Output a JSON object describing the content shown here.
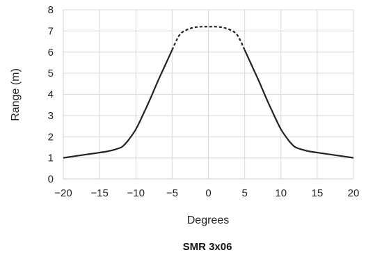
{
  "chart_data": {
    "type": "line",
    "title": "SMR 3x06",
    "xlabel": "Degrees",
    "ylabel": "Range (m)",
    "xlim": [
      -20,
      20
    ],
    "ylim": [
      0,
      8
    ],
    "x_ticks": [
      -20,
      -15,
      -10,
      -5,
      0,
      5,
      10,
      15,
      20
    ],
    "y_ticks": [
      0,
      1,
      2,
      3,
      4,
      5,
      6,
      7,
      8
    ],
    "x_tick_labels": [
      "−20",
      "−15",
      "−10",
      "−5",
      "0",
      "5",
      "10",
      "15",
      "20"
    ],
    "y_tick_labels": [
      "0",
      "1",
      "2",
      "3",
      "4",
      "5",
      "6",
      "7",
      "8"
    ],
    "grid": true,
    "line_color": "#222222",
    "series": [
      {
        "style": "solid",
        "x": [
          -20,
          -18,
          -16,
          -14,
          -13,
          -12,
          -11.5,
          -11,
          -10,
          -9,
          -8,
          -7,
          -6,
          -5
        ],
        "y": [
          1.0,
          1.1,
          1.2,
          1.3,
          1.38,
          1.5,
          1.65,
          1.85,
          2.35,
          3.05,
          3.8,
          4.6,
          5.35,
          6.1
        ]
      },
      {
        "style": "dashed",
        "x": [
          -5,
          -4,
          -3,
          -2,
          -1,
          0,
          1,
          2,
          3,
          4,
          5
        ],
        "y": [
          6.1,
          6.8,
          7.05,
          7.16,
          7.2,
          7.2,
          7.2,
          7.16,
          7.05,
          6.8,
          6.1
        ]
      },
      {
        "style": "solid",
        "x": [
          5,
          6,
          7,
          8,
          9,
          10,
          11,
          11.5,
          12,
          13,
          14,
          16,
          18,
          20
        ],
        "y": [
          6.1,
          5.35,
          4.6,
          3.8,
          3.05,
          2.35,
          1.85,
          1.65,
          1.5,
          1.38,
          1.3,
          1.2,
          1.1,
          1.0
        ]
      }
    ]
  }
}
